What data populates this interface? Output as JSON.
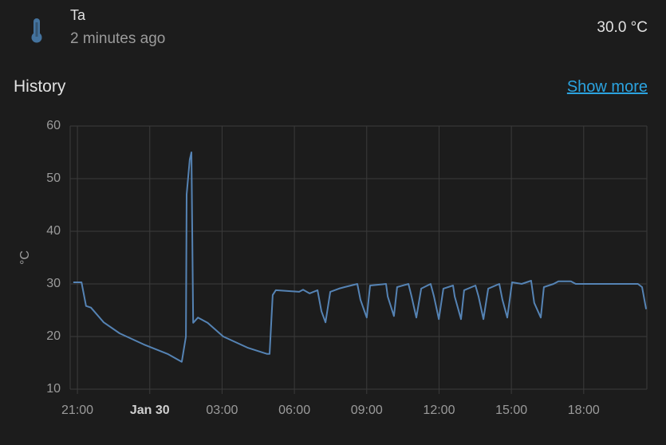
{
  "header": {
    "name": "Ta",
    "last_changed": "2 minutes ago",
    "state": "30.0 °C"
  },
  "history": {
    "title": "History",
    "link": "Show more"
  },
  "chart_data": {
    "type": "line",
    "y_label": "°C",
    "grid": true,
    "xlim": [
      -0.3,
      23.62
    ],
    "ylim": [
      10,
      60
    ],
    "yticks": [
      10,
      20,
      30,
      40,
      50,
      60
    ],
    "xticks": [
      {
        "value": 0,
        "label": "21:00"
      },
      {
        "value": 3,
        "label": "Jan 30"
      },
      {
        "value": 6,
        "label": "03:00"
      },
      {
        "value": 9,
        "label": "06:00"
      },
      {
        "value": 12,
        "label": "09:00"
      },
      {
        "value": 15,
        "label": "12:00"
      },
      {
        "value": 18,
        "label": "15:00"
      },
      {
        "value": 21,
        "label": "18:00"
      }
    ],
    "series": [
      {
        "name": "Ta",
        "color": "#5583b4",
        "x": [
          -0.17,
          0.17,
          0.36,
          0.56,
          1.09,
          1.75,
          2.75,
          3.74,
          4.33,
          4.5,
          4.53,
          4.66,
          4.73,
          4.8,
          5.0,
          5.4,
          6.05,
          7.05,
          7.87,
          7.97,
          8.1,
          8.23,
          9.2,
          9.36,
          9.63,
          9.96,
          10.12,
          10.29,
          10.49,
          10.85,
          11.08,
          11.61,
          11.74,
          12.0,
          12.14,
          12.4,
          12.8,
          12.87,
          13.13,
          13.26,
          13.73,
          13.86,
          14.06,
          14.26,
          14.65,
          14.79,
          14.99,
          15.18,
          15.58,
          15.65,
          15.91,
          16.04,
          16.51,
          16.64,
          16.84,
          17.04,
          17.5,
          17.63,
          17.83,
          18.03,
          18.43,
          18.82,
          18.95,
          19.22,
          19.35,
          19.75,
          19.95,
          20.47,
          20.67,
          21.27,
          23.25,
          23.42,
          23.59
        ],
        "values": [
          30.3,
          30.3,
          25.8,
          25.5,
          22.7,
          20.6,
          18.5,
          16.7,
          15.2,
          20,
          47,
          53.6,
          55,
          22.6,
          23.6,
          22.6,
          20,
          17.9,
          16.7,
          16.7,
          27.9,
          28.8,
          28.5,
          28.9,
          28.2,
          28.8,
          24.8,
          22.7,
          28.5,
          29.1,
          29.4,
          30,
          27,
          23.6,
          29.7,
          29.8,
          30,
          27.6,
          23.9,
          29.4,
          30,
          27.6,
          23.6,
          29.1,
          30,
          27.6,
          23.3,
          29.1,
          29.7,
          27.6,
          23.3,
          28.8,
          29.7,
          27.6,
          23.3,
          29.1,
          30,
          27,
          23.6,
          30.3,
          30,
          30.6,
          26.4,
          23.6,
          29.4,
          30,
          30.5,
          30.5,
          30,
          30,
          30,
          29.4,
          25.2
        ]
      }
    ]
  }
}
